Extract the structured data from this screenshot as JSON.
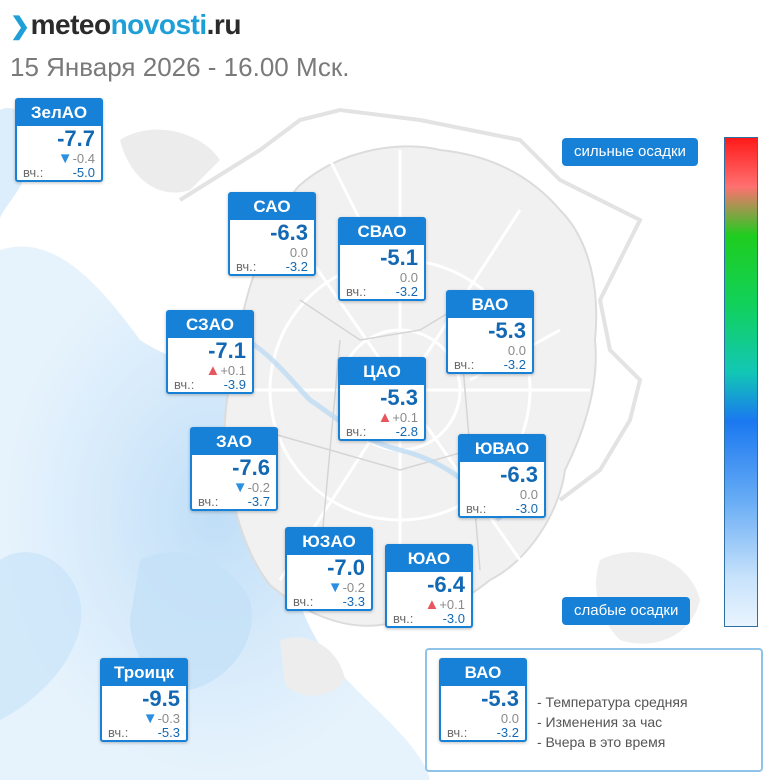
{
  "header": {
    "logo_text_1": "meteo",
    "logo_text_2": "novosti",
    "logo_text_3": ".ru",
    "subtitle": "15 Января 2026 - 16.00 Мск."
  },
  "labels": {
    "yesterday_prefix": "вч.:"
  },
  "districts": [
    {
      "name": "ЗелАО",
      "temp": "-7.7",
      "change_dir": "down",
      "change": "-0.4",
      "yesterday": "-5.0"
    },
    {
      "name": "САО",
      "temp": "-6.3",
      "change_dir": "none",
      "change": "0.0",
      "yesterday": "-3.2"
    },
    {
      "name": "СВАО",
      "temp": "-5.1",
      "change_dir": "none",
      "change": "0.0",
      "yesterday": "-3.2"
    },
    {
      "name": "ВАО",
      "temp": "-5.3",
      "change_dir": "none",
      "change": "0.0",
      "yesterday": "-3.2"
    },
    {
      "name": "СЗАО",
      "temp": "-7.1",
      "change_dir": "up",
      "change": "+0.1",
      "yesterday": "-3.9"
    },
    {
      "name": "ЦАО",
      "temp": "-5.3",
      "change_dir": "up",
      "change": "+0.1",
      "yesterday": "-2.8"
    },
    {
      "name": "ЗАО",
      "temp": "-7.6",
      "change_dir": "down",
      "change": "-0.2",
      "yesterday": "-3.7"
    },
    {
      "name": "ЮВАО",
      "temp": "-6.3",
      "change_dir": "none",
      "change": "0.0",
      "yesterday": "-3.0"
    },
    {
      "name": "ЮЗАО",
      "temp": "-7.0",
      "change_dir": "down",
      "change": "-0.2",
      "yesterday": "-3.3"
    },
    {
      "name": "ЮАО",
      "temp": "-6.4",
      "change_dir": "up",
      "change": "+0.1",
      "yesterday": "-3.0"
    },
    {
      "name": "Троицк",
      "temp": "-9.5",
      "change_dir": "down",
      "change": "-0.3",
      "yesterday": "-5.3"
    }
  ],
  "scale": {
    "top_label": "сильные осадки",
    "bottom_label": "слабые осадки",
    "colors": [
      "#ff1a1a",
      "#ff7070",
      "#1fcd1f",
      "#12c7b4",
      "#1a78f0",
      "#66abf5",
      "#e9f4fe"
    ]
  },
  "legend": {
    "sample": {
      "name": "ВАО",
      "temp": "-5.3",
      "change_dir": "none",
      "change": "0.0",
      "yesterday": "-3.2"
    },
    "items": [
      "- Температура средняя",
      "- Изменения за час",
      "- Вчера в это время"
    ]
  },
  "icons": {
    "arrow_down": "▼",
    "arrow_up": "▲"
  },
  "colors": {
    "card_blue": "#1681d6",
    "temp_blue": "#1268b3",
    "arrow_down": "#2a8fe0",
    "arrow_up": "#e8555b",
    "precip_light": "#cfe7fa"
  }
}
